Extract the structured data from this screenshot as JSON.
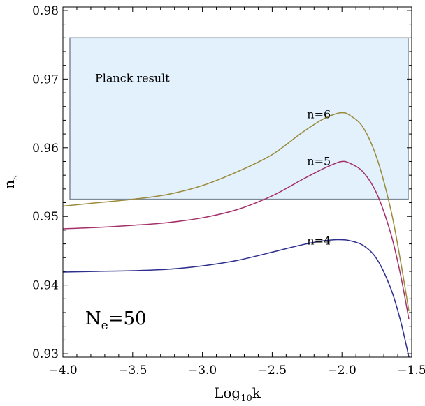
{
  "chart_data": {
    "type": "line",
    "xlabel": {
      "base": "Log",
      "sub": "10",
      "tail": "k"
    },
    "ylabel": {
      "base": "n",
      "sub": "s"
    },
    "xlim": [
      -4.0,
      -1.5
    ],
    "ylim": [
      0.9295,
      0.9805
    ],
    "x_ticks": [
      -4.0,
      -3.5,
      -3.0,
      -2.5,
      -2.0,
      -1.5
    ],
    "x_tick_labels": [
      "−4.0",
      "−3.5",
      "−3.0",
      "−2.5",
      "−2.0",
      "−1.5"
    ],
    "y_ticks": [
      0.93,
      0.94,
      0.95,
      0.96,
      0.97,
      0.98
    ],
    "y_tick_labels": [
      "0.93",
      "0.94",
      "0.95",
      "0.96",
      "0.97",
      "0.98"
    ],
    "grid": false,
    "band": {
      "label": "Planck result",
      "x_range": [
        -4.0,
        -1.5
      ],
      "y_range": [
        0.9525,
        0.976
      ],
      "fill_color": "#ddeefc",
      "edge_color": "#7f8a99"
    },
    "series": [
      {
        "name": "n=6",
        "color": "#9a8a3a",
        "x": [
          -4.0,
          -3.75,
          -3.5,
          -3.25,
          -3.0,
          -2.75,
          -2.5,
          -2.3,
          -2.15,
          -2.05,
          -2.0,
          -1.95,
          -1.85,
          -1.75,
          -1.65,
          -1.58,
          -1.52
        ],
        "y": [
          0.9515,
          0.952,
          0.9525,
          0.9532,
          0.9545,
          0.9565,
          0.959,
          0.962,
          0.964,
          0.9649,
          0.9651,
          0.9648,
          0.963,
          0.9585,
          0.951,
          0.9435,
          0.9362
        ]
      },
      {
        "name": "n=5",
        "color": "#a3306a",
        "x": [
          -4.0,
          -3.75,
          -3.5,
          -3.25,
          -3.0,
          -2.75,
          -2.5,
          -2.3,
          -2.15,
          -2.05,
          -2.0,
          -1.95,
          -1.85,
          -1.75,
          -1.65,
          -1.58,
          -1.52
        ],
        "y": [
          0.9482,
          0.9484,
          0.9487,
          0.9491,
          0.9498,
          0.951,
          0.953,
          0.9552,
          0.9568,
          0.9577,
          0.958,
          0.9578,
          0.9565,
          0.9533,
          0.9475,
          0.9415,
          0.935
        ]
      },
      {
        "name": "n=4",
        "color": "#2d2e8e",
        "x": [
          -4.0,
          -3.75,
          -3.5,
          -3.25,
          -3.0,
          -2.75,
          -2.5,
          -2.3,
          -2.15,
          -2.05,
          -2.0,
          -1.95,
          -1.85,
          -1.75,
          -1.65,
          -1.58,
          -1.52
        ],
        "y": [
          0.9419,
          0.942,
          0.9421,
          0.9423,
          0.9428,
          0.9436,
          0.9448,
          0.9458,
          0.9464,
          0.9466,
          0.9466,
          0.9465,
          0.9458,
          0.9438,
          0.9395,
          0.9348,
          0.9295
        ]
      }
    ],
    "annotations": [
      {
        "text": "n=6",
        "x": -2.25,
        "y": 0.9643
      },
      {
        "text": "n=5",
        "x": -2.25,
        "y": 0.9575
      },
      {
        "text": "n=4",
        "x": -2.25,
        "y": 0.9459
      }
    ],
    "ne_label": {
      "base": "N",
      "sub": "e",
      "tail": "=50",
      "x": -3.84,
      "y": 0.9343
    }
  }
}
